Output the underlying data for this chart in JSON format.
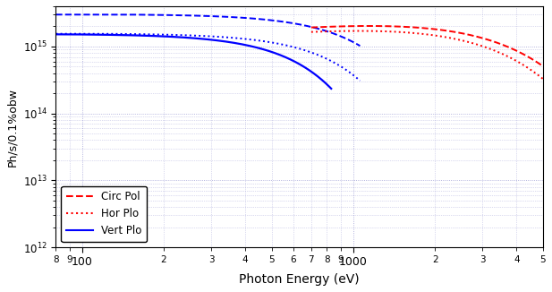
{
  "xlabel": "Photon Energy (eV)",
  "ylabel": "Ph/s/0.1%obw",
  "xlim": [
    80,
    5000
  ],
  "ylim": [
    1000000000000.0,
    4000000000000000.0
  ],
  "background_color": "#ffffff",
  "grid_color": "#8888cc",
  "legend_loc": "lower left",
  "blue_circ_pol": {
    "color": "blue",
    "linestyle": "--",
    "x_start": 80,
    "x_end": 1060,
    "E_c": 1800,
    "flux_peak": 3000000000000000.0,
    "E_onset": 80
  },
  "blue_hor_plo": {
    "color": "blue",
    "linestyle": ":",
    "x_start": 80,
    "x_end": 1060,
    "E_c": 1500,
    "flux_peak": 1550000000000000.0,
    "E_onset": 80
  },
  "blue_vert_plo": {
    "color": "blue",
    "linestyle": "-",
    "x_start": 80,
    "x_end": 830,
    "E_c": 1100,
    "flux_peak": 1520000000000000.0,
    "E_onset": 80
  },
  "red_circ_pol": {
    "color": "red",
    "linestyle": "--",
    "x_start": 700,
    "x_end": 5000,
    "E_c": 6000,
    "flux_peak": 2000000000000000.0,
    "peak_E": 900
  },
  "red_hor_plo": {
    "color": "red",
    "linestyle": ":",
    "x_start": 700,
    "x_end": 5000,
    "E_c": 5500,
    "flux_peak": 1700000000000000.0,
    "peak_E": 900
  },
  "legend_entries": [
    {
      "color": "red",
      "linestyle": "--",
      "label": "Circ Pol"
    },
    {
      "color": "red",
      "linestyle": ":",
      "label": "Hor Plo"
    },
    {
      "color": "blue",
      "linestyle": "-",
      "label": "Vert Plo"
    }
  ]
}
